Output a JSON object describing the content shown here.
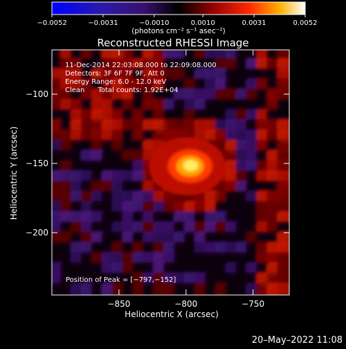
{
  "chart_data": {
    "type": "heatmap",
    "title": "Reconstructed RHESSI Image",
    "xlabel": "Heliocentric X (arcsec)",
    "ylabel": "Heliocentric Y (arcsec)",
    "xlim": [
      -900,
      -723
    ],
    "ylim": [
      -245,
      -68
    ],
    "x_ticks": [
      -850,
      -800,
      -750
    ],
    "x_tick_labels": [
      "−850",
      "−800",
      "−750"
    ],
    "y_ticks": [
      -100,
      -150,
      -200
    ],
    "y_tick_labels": [
      "−100",
      "−150",
      "−200"
    ],
    "colorbar": {
      "range": [
        -0.0052,
        0.0052
      ],
      "ticks": [
        -0.0052,
        -0.0031,
        -0.001,
        0.001,
        0.0031,
        0.0052
      ],
      "tick_labels": [
        "−0.0052",
        "−0.0031",
        "−0.0010",
        "0.0010",
        "0.0031",
        "0.0052"
      ],
      "unit_label": "(photons cm⁻² s⁻¹ asec⁻²)"
    },
    "annotations": [
      "11-Dec-2014 22:03:08.000 to 22:09:08.000",
      "Detectors: 3F 6F 7F 9F, Att 0",
      "Energy Range: 6.0 - 12.0 keV",
      "Clean      Total counts: 1.92E+04"
    ],
    "peak_label": "Position of Peak = [−797,−152]",
    "peak": {
      "x": -797,
      "y": -152
    },
    "timestamp": "20–May–2022 11:08"
  }
}
